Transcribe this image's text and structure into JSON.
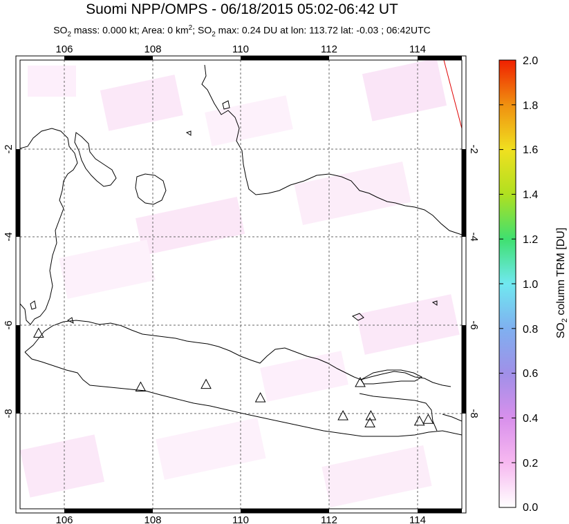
{
  "header": {
    "title": "Suomi NPP/OMPS - 06/18/2015 05:02-06:42 UT",
    "subtitle_parts": {
      "p1": "SO",
      "sub1": "2",
      "p2": " mass: 0.000 kt; Area: 0 km",
      "sup1": "2",
      "p3": "; SO",
      "sub2": "2",
      "p4": " max: 0.24 DU at lon: 113.72 lat: -0.03 ; 06:42UTC"
    }
  },
  "map": {
    "lon_range": [
      105,
      115
    ],
    "lat_range": [
      -10,
      0
    ],
    "lon_ticks": [
      "106",
      "108",
      "110",
      "112",
      "114"
    ],
    "lat_ticks": [
      "-2",
      "-4",
      "-6",
      "-8"
    ],
    "lat_ticks_right": [
      "-2",
      "-4",
      "-6",
      "-8"
    ],
    "volcanoes": [
      {
        "name": "volcano",
        "lon": 105.42,
        "lat": -6.1
      },
      {
        "name": "volcano",
        "lon": 107.73,
        "lat": -7.3
      },
      {
        "name": "volcano",
        "lon": 109.21,
        "lat": -7.24
      },
      {
        "name": "volcano",
        "lon": 110.44,
        "lat": -7.54
      },
      {
        "name": "volcano",
        "lon": 112.31,
        "lat": -7.94
      },
      {
        "name": "volcano",
        "lon": 112.94,
        "lat": -7.94
      },
      {
        "name": "volcano",
        "lon": 112.92,
        "lat": -8.1
      },
      {
        "name": "volcano",
        "lon": 114.04,
        "lat": -8.06
      },
      {
        "name": "volcano",
        "lon": 114.24,
        "lat": -8.02
      },
      {
        "name": "volcano",
        "lon": 112.7,
        "lat": -7.2
      }
    ]
  },
  "colorbar": {
    "label_main": "SO",
    "label_sub": "2",
    "label_rest": " column TRM [DU]",
    "ticks": [
      "2.0",
      "1.8",
      "1.6",
      "1.4",
      "1.2",
      "1.0",
      "0.8",
      "0.6",
      "0.4",
      "0.2",
      "0.0"
    ],
    "min": 0.0,
    "max": 2.0,
    "colors": [
      "#ffffff",
      "#f7b8f0",
      "#d890ec",
      "#a090e8",
      "#7fb0f0",
      "#70e8f0",
      "#3fe070",
      "#b0e020",
      "#f0e020",
      "#f09010",
      "#f02000"
    ]
  }
}
